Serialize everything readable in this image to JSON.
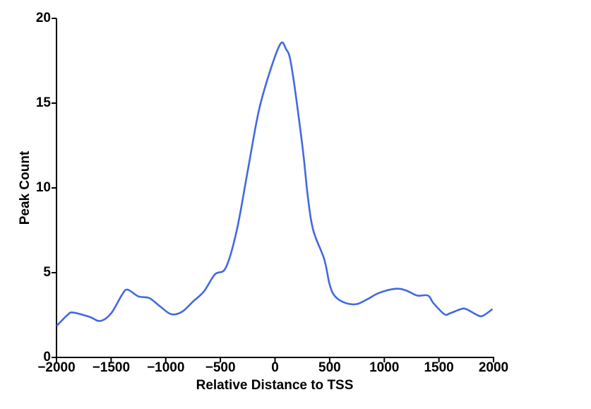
{
  "chart_data": {
    "type": "line",
    "xlabel": "Relative Distance to TSS",
    "ylabel": "Peak Count",
    "x": [
      -2000,
      -1900,
      -1850,
      -1700,
      -1600,
      -1500,
      -1400,
      -1350,
      -1250,
      -1150,
      -1050,
      -950,
      -850,
      -750,
      -650,
      -550,
      -450,
      -350,
      -250,
      -150,
      -50,
      50,
      100,
      150,
      250,
      300,
      350,
      450,
      500,
      550,
      650,
      750,
      850,
      950,
      1100,
      1200,
      1300,
      1400,
      1450,
      1550,
      1600,
      1700,
      1750,
      1850,
      1900,
      1990
    ],
    "series": [
      {
        "color": "#4169e1",
        "values": [
          1.85,
          2.5,
          2.65,
          2.4,
          2.15,
          2.6,
          3.7,
          4.0,
          3.6,
          3.5,
          3.0,
          2.55,
          2.7,
          3.3,
          3.9,
          4.9,
          5.3,
          7.5,
          11,
          14.5,
          16.8,
          18.5,
          18.2,
          17.2,
          12.5,
          9.5,
          7.5,
          5.8,
          4.3,
          3.6,
          3.2,
          3.15,
          3.45,
          3.8,
          4.05,
          3.95,
          3.65,
          3.65,
          3.2,
          2.55,
          2.6,
          2.85,
          2.85,
          2.5,
          2.45,
          2.85
        ]
      }
    ],
    "xlim": [
      -2000,
      2000
    ],
    "xticks": [
      {
        "value": -2000,
        "label": "−2000"
      },
      {
        "value": -1500,
        "label": "−1500"
      },
      {
        "value": -1000,
        "label": "−1000"
      },
      {
        "value": -500,
        "label": "−500"
      },
      0,
      500,
      1000,
      1500,
      2000
    ],
    "ylim": [
      0,
      20
    ],
    "yticks": [
      0,
      5,
      10,
      15,
      20
    ]
  }
}
